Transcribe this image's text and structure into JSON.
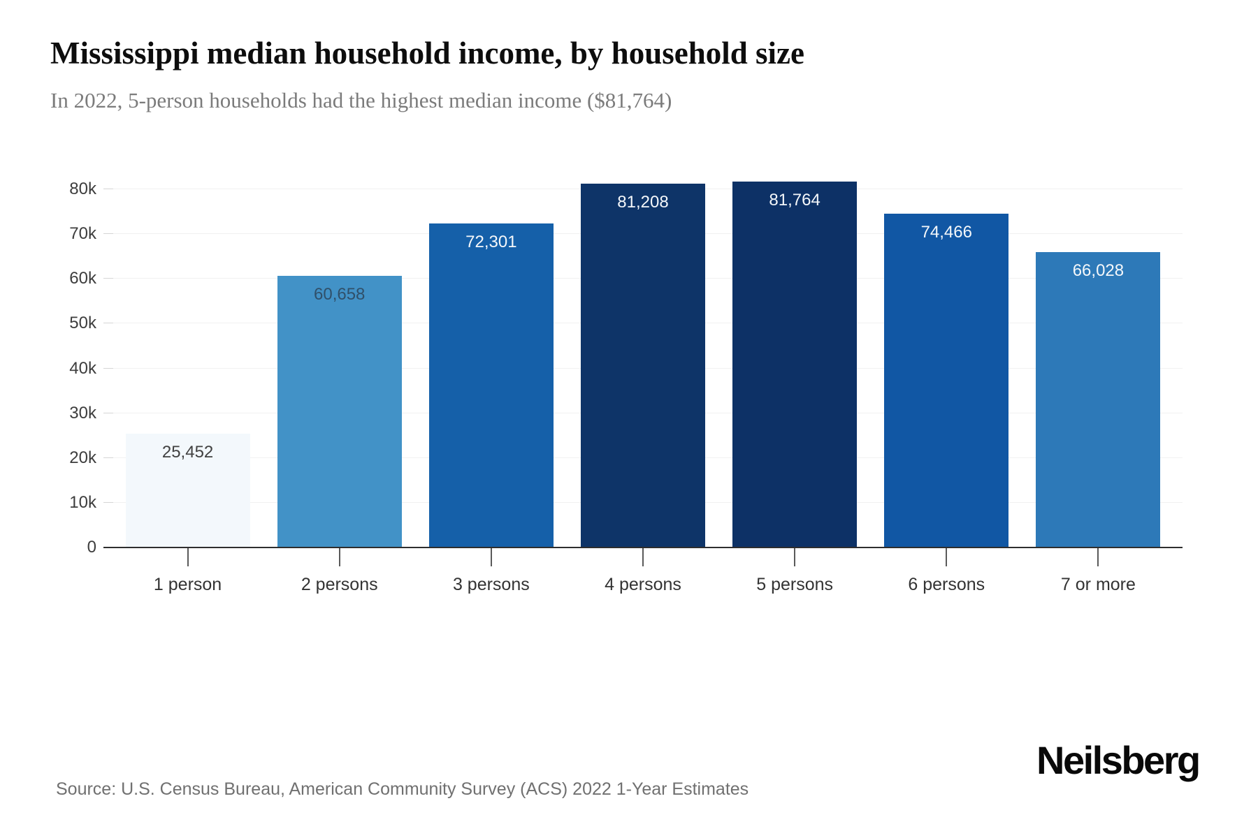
{
  "header": {
    "title": "Mississippi median household income, by household size",
    "subtitle": "In 2022, 5-person households had the highest median income ($81,764)"
  },
  "footer": {
    "source": "Source: U.S. Census Bureau, American Community Survey (ACS) 2022 1-Year Estimates",
    "brand": "Neilsberg"
  },
  "chart_data": {
    "type": "bar",
    "title": "Mississippi median household income, by household size",
    "subtitle": "In 2022, 5-person households had the highest median income ($81,764)",
    "categories": [
      "1 person",
      "2 persons",
      "3 persons",
      "4 persons",
      "5 persons",
      "6 persons",
      "7 or more"
    ],
    "values": [
      25452,
      60658,
      72301,
      81208,
      81764,
      74466,
      66028
    ],
    "value_labels": [
      "25,452",
      "60,658",
      "72,301",
      "81,208",
      "81,764",
      "74,466",
      "66,028"
    ],
    "bar_colors": [
      "#f3f8fc",
      "#4292c7",
      "#1560a9",
      "#0e3468",
      "#0d3166",
      "#1157a4",
      "#2d79b8"
    ],
    "value_label_colors": [
      "#414141",
      "#30506a",
      "#f4f7fa",
      "#f4f7fa",
      "#f4f7fa",
      "#f4f7fa",
      "#f4f7fa"
    ],
    "xlabel": "",
    "ylabel": "",
    "ylim": [
      0,
      85000
    ],
    "yticks": [
      {
        "value": 0,
        "label": "0"
      },
      {
        "value": 10000,
        "label": "10k"
      },
      {
        "value": 20000,
        "label": "20k"
      },
      {
        "value": 30000,
        "label": "30k"
      },
      {
        "value": 40000,
        "label": "40k"
      },
      {
        "value": 50000,
        "label": "50k"
      },
      {
        "value": 60000,
        "label": "60k"
      },
      {
        "value": 70000,
        "label": "70k"
      },
      {
        "value": 80000,
        "label": "80k"
      }
    ],
    "grid": "horizontal",
    "legend": "none"
  }
}
